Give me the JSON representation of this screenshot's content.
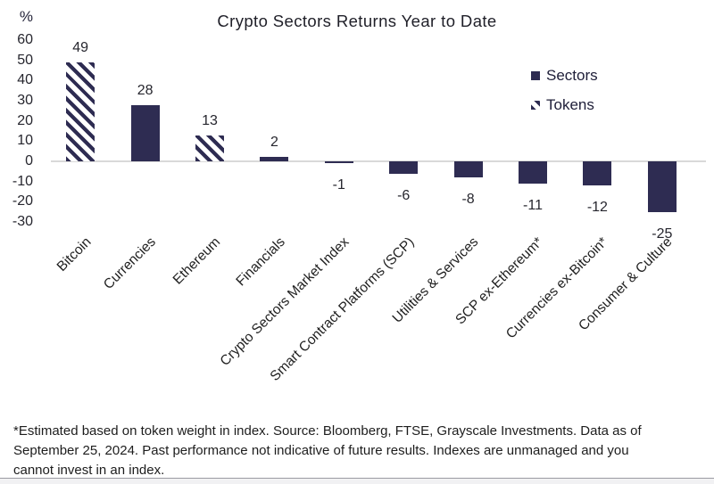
{
  "title": "Crypto Sectors Returns Year to Date",
  "legend": [
    {
      "label": "Sectors",
      "style": "solid"
    },
    {
      "label": "Tokens",
      "style": "hatched"
    }
  ],
  "chart_data": {
    "type": "bar",
    "title": "Crypto Sectors Returns Year to Date",
    "xlabel": "",
    "ylabel": "%",
    "ylim": [
      -30,
      60
    ],
    "yticks": [
      60,
      50,
      40,
      30,
      20,
      10,
      0,
      -10,
      -20,
      -30
    ],
    "grid": false,
    "legend_position": "upper right",
    "categories": [
      "Bitcoin",
      "Currencies",
      "Ethereum",
      "Financials",
      "Crypto Sectors Market Index",
      "Smart Contract Platforms (SCP)",
      "Utilities & Services",
      "SCP ex-Ethereum*",
      "Currencies ex-Bitcoin*",
      "Consumer & Culture"
    ],
    "values": [
      49,
      28,
      13,
      2,
      -1,
      -6,
      -8,
      -11,
      -12,
      -25
    ],
    "groups": [
      "Tokens",
      "Sectors",
      "Tokens",
      "Sectors",
      "Sectors",
      "Sectors",
      "Sectors",
      "Sectors",
      "Sectors",
      "Sectors"
    ],
    "colors": {
      "bar": "#2e2c52",
      "hatch_background": "#ffffff",
      "zero_line": "#d9d9d9"
    }
  },
  "footnote": {
    "lines": [
      "*Estimated based on token weight in index. Source: Bloomberg, FTSE, Grayscale Investments. Data as of",
      "September 25, 2024. Past performance not indicative of future results. Indexes are unmanaged and you",
      "cannot invest in an index."
    ]
  }
}
